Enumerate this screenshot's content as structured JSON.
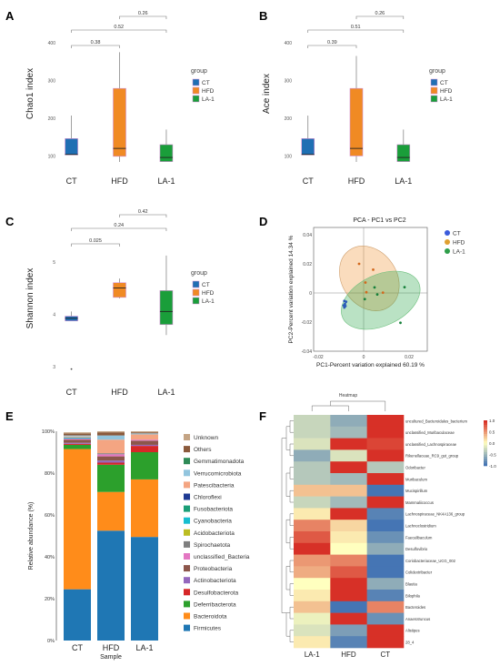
{
  "panel_letters": [
    "A",
    "B",
    "C",
    "D",
    "E",
    "F"
  ],
  "chart_data": [
    {
      "panel": "A",
      "type": "box",
      "ylabel": "Chao1 index",
      "categories": [
        "CT",
        "HFD",
        "LA-1"
      ],
      "yticks": [
        100,
        200,
        300,
        400
      ],
      "ylim": [
        60,
        470
      ],
      "legend": {
        "title": "group",
        "entries": [
          "CT",
          "HFD",
          "LA-1"
        ]
      },
      "brackets": [
        {
          "from": "CT",
          "to": "HFD",
          "label": "0.38"
        },
        {
          "from": "CT",
          "to": "LA-1",
          "label": "0.52"
        },
        {
          "from": "HFD",
          "to": "LA-1",
          "label": "0.26"
        }
      ],
      "boxes": [
        {
          "group": "CT",
          "min": 103,
          "q1": 103,
          "median": 104,
          "q3": 146,
          "max": 207
        },
        {
          "group": "HFD",
          "min": 84,
          "q1": 99,
          "median": 120,
          "q3": 279,
          "max": 375
        },
        {
          "group": "LA-1",
          "min": 85,
          "q1": 85,
          "median": 96,
          "q3": 130,
          "max": 170
        }
      ]
    },
    {
      "panel": "B",
      "type": "box",
      "ylabel": "Ace index",
      "categories": [
        "CT",
        "HFD",
        "LA-1"
      ],
      "yticks": [
        100,
        200,
        300,
        400
      ],
      "ylim": [
        60,
        470
      ],
      "legend": {
        "title": "group",
        "entries": [
          "CT",
          "HFD",
          "LA-1"
        ]
      },
      "brackets": [
        {
          "from": "CT",
          "to": "HFD",
          "label": "0.39"
        },
        {
          "from": "CT",
          "to": "LA-1",
          "label": "0.51"
        },
        {
          "from": "HFD",
          "to": "LA-1",
          "label": "0.26"
        }
      ],
      "boxes": [
        {
          "group": "CT",
          "min": 103,
          "q1": 103,
          "median": 104,
          "q3": 146,
          "max": 207
        },
        {
          "group": "HFD",
          "min": 84,
          "q1": 100,
          "median": 120,
          "q3": 279,
          "max": 365
        },
        {
          "group": "LA-1",
          "min": 85,
          "q1": 85,
          "median": 96,
          "q3": 130,
          "max": 170
        }
      ]
    },
    {
      "panel": "C",
      "type": "box",
      "ylabel": "Shannon index",
      "categories": [
        "CT",
        "HFD",
        "LA-1"
      ],
      "yticks": [
        3,
        4,
        5
      ],
      "ylim": [
        2.7,
        5.9
      ],
      "legend": {
        "title": "group",
        "entries": [
          "CT",
          "HFD",
          "LA-1"
        ]
      },
      "brackets": [
        {
          "from": "CT",
          "to": "HFD",
          "label": "0.025"
        },
        {
          "from": "CT",
          "to": "LA-1",
          "label": "0.24"
        },
        {
          "from": "HFD",
          "to": "LA-1",
          "label": "0.42"
        }
      ],
      "boxes": [
        {
          "group": "CT",
          "min": 3.87,
          "q1": 3.87,
          "median": 3.92,
          "q3": 3.96,
          "max": 4.05,
          "outliers": [
            2.95
          ]
        },
        {
          "group": "HFD",
          "min": 4.3,
          "q1": 4.32,
          "median": 4.5,
          "q3": 4.6,
          "max": 4.68
        },
        {
          "group": "LA-1",
          "min": 3.6,
          "q1": 3.8,
          "median": 4.05,
          "q3": 4.45,
          "max": 5.12
        }
      ]
    },
    {
      "panel": "D",
      "type": "scatter",
      "title": "PCA - PC1 vs PC2",
      "xlabel": "PC1-Percent variation explained 60.19 %",
      "ylabel": "PC2-Percent variation explained 14.34 %",
      "xlim": [
        -0.022,
        0.028
      ],
      "ylim": [
        -0.04,
        0.045
      ],
      "xticks": [
        -0.02,
        0,
        0.02
      ],
      "yticks": [
        -0.04,
        -0.02,
        0,
        0.02,
        0.04
      ],
      "legend": {
        "entries": [
          "CT",
          "HFD",
          "LA-1"
        ]
      },
      "series": [
        {
          "name": "CT",
          "points": [
            [
              -0.0085,
              -0.0055
            ],
            [
              -0.0082,
              -0.0075
            ],
            [
              -0.0088,
              -0.0085
            ],
            [
              -0.008,
              -0.009
            ],
            [
              -0.0077,
              -0.006
            ],
            [
              -0.0085,
              -0.01
            ]
          ]
        },
        {
          "name": "HFD",
          "points": [
            [
              -0.002,
              0.02
            ],
            [
              0.0008,
              0.0072
            ],
            [
              0.0012,
              0.0005
            ],
            [
              0.0042,
              0.016
            ],
            [
              0.0085,
              0.0002
            ]
          ]
        },
        {
          "name": "LA-1",
          "points": [
            [
              0.0005,
              -0.0042
            ],
            [
              0.0048,
              0.0038
            ],
            [
              0.0162,
              -0.0205
            ],
            [
              0.018,
              0.004
            ],
            [
              0.006,
              -0.001
            ]
          ]
        }
      ]
    },
    {
      "panel": "E",
      "type": "stacked_bar",
      "ylabel": "Relative abundance (%)",
      "xlabel": "Sample",
      "categories": [
        "CT",
        "HFD",
        "LA-1"
      ],
      "yticks": [
        "0%",
        "20%",
        "40%",
        "60%",
        "80%",
        "100%"
      ],
      "ylim": [
        0,
        100
      ],
      "legend_order": [
        "Unknown",
        "Others",
        "Gemmatimonadota",
        "Verrucomicrobiota",
        "Patescibacteria",
        "Chloroflexi",
        "Fusobacteriota",
        "Cyanobacteria",
        "Acidobacteriota",
        "Spirochaetota",
        "unclassified_Bacteria",
        "Proteobacteria",
        "Actinobacteriota",
        "Desulfobacterota",
        "Deferribacterota",
        "Bacteroidota",
        "Firmicutes"
      ],
      "series": [
        {
          "name": "Firmicutes",
          "values": [
            24.5,
            52.5,
            49.5
          ]
        },
        {
          "name": "Bacteroidota",
          "values": [
            67,
            18.5,
            27.5
          ]
        },
        {
          "name": "Deferribacterota",
          "values": [
            2,
            13,
            13
          ]
        },
        {
          "name": "Desulfobacterota",
          "values": [
            0.5,
            1,
            3
          ]
        },
        {
          "name": "Actinobacteriota",
          "values": [
            0.5,
            1,
            0.5
          ]
        },
        {
          "name": "Proteobacteria",
          "values": [
            1.5,
            2,
            2
          ]
        },
        {
          "name": "unclassified_Bacteria",
          "values": [
            0.5,
            1,
            0.5
          ]
        },
        {
          "name": "Spirochaetota",
          "values": [
            0,
            0.5,
            0
          ]
        },
        {
          "name": "Acidobacteriota",
          "values": [
            0,
            0,
            0
          ]
        },
        {
          "name": "Cyanobacteria",
          "values": [
            0.5,
            0,
            0
          ]
        },
        {
          "name": "Fusobacteriota",
          "values": [
            0,
            0,
            0
          ]
        },
        {
          "name": "Chloroflexi",
          "values": [
            0,
            0,
            0
          ]
        },
        {
          "name": "Patescibacteria",
          "values": [
            0.5,
            6.5,
            2.5
          ]
        },
        {
          "name": "Verrucomicrobiota",
          "values": [
            0.5,
            2,
            0.5
          ]
        },
        {
          "name": "Gemmatimonadota",
          "values": [
            0,
            0,
            0
          ]
        },
        {
          "name": "Others",
          "values": [
            1,
            1.5,
            0.5
          ]
        },
        {
          "name": "Unknown",
          "values": [
            0.5,
            0.5,
            0.5
          ]
        }
      ]
    },
    {
      "panel": "F",
      "type": "heatmap",
      "title": "Heatmap",
      "columns": [
        "LA-1",
        "HFD",
        "CT"
      ],
      "colorbar_ticks": [
        "1.0",
        "0.5",
        "0.0",
        "-0.5",
        "-1.0"
      ],
      "rows": [
        "uncultured_Bacteroidales_bacterium",
        "unclassified_Muribaculaceae",
        "unclassified_Lachnospiraceae",
        "Rikenellaceae_RC9_gut_group",
        "Odoribacter",
        "Muribaculum",
        "Mucispirillum",
        "Mammaliicoccus",
        "Lachnospiraceae_NK4A136_group",
        "Lachnoclostridium",
        "Faecalibaculum",
        "Desulfovibrio",
        "Coriobacteriaceae_UCG_002",
        "Colidextribacter",
        "Blautia",
        "Bilophila",
        "Bacteroides",
        "Anaerotruncus",
        "Alistipes",
        "28_4"
      ],
      "values": [
        [
          -0.3,
          -0.6,
          1.0
        ],
        [
          -0.3,
          -0.5,
          1.0
        ],
        [
          -0.2,
          1.0,
          0.9
        ],
        [
          -0.6,
          -0.2,
          1.0
        ],
        [
          -0.4,
          1.0,
          -0.4
        ],
        [
          -0.4,
          -0.5,
          1.0
        ],
        [
          0.3,
          0.3,
          -1.0
        ],
        [
          -0.3,
          -0.5,
          1.0
        ],
        [
          0.1,
          1.0,
          -0.9
        ],
        [
          0.6,
          0.2,
          -1.0
        ],
        [
          0.8,
          0.1,
          -0.8
        ],
        [
          1.0,
          0.0,
          -0.6
        ],
        [
          0.5,
          0.6,
          -1.0
        ],
        [
          0.4,
          0.8,
          -1.0
        ],
        [
          0.0,
          1.0,
          -0.6
        ],
        [
          0.1,
          1.0,
          -0.9
        ],
        [
          0.3,
          -1.0,
          0.6
        ],
        [
          -0.1,
          1.0,
          -0.8
        ],
        [
          -0.2,
          -0.7,
          1.0
        ],
        [
          0.1,
          -0.9,
          1.0
        ]
      ]
    }
  ],
  "colors": {
    "CT": "#1f6fb3",
    "HFD": "#f08a24",
    "LA-1": "#1a9e3a",
    "heat_high": "#d73027",
    "heat_mid": "#ffffbf",
    "heat_low": "#4575b4",
    "phyla": {
      "Firmicutes": "#1f77b4",
      "Bacteroidota": "#ff8c1a",
      "Deferribacterota": "#2ca02c",
      "Desulfobacterota": "#d62728",
      "Actinobacteriota": "#9467bd",
      "Proteobacteria": "#8c564b",
      "unclassified_Bacteria": "#e377c2",
      "Spirochaetota": "#7f7f7f",
      "Acidobacteriota": "#bcbd22",
      "Cyanobacteria": "#17becf",
      "Fusobacteriota": "#1b9e77",
      "Chloroflexi": "#1f3a93",
      "Patescibacteria": "#f4a582",
      "Verrucomicrobiota": "#92c5de",
      "Gemmatimonadota": "#2e8b57",
      "Others": "#8b5a3c",
      "Unknown": "#c4a484"
    }
  }
}
